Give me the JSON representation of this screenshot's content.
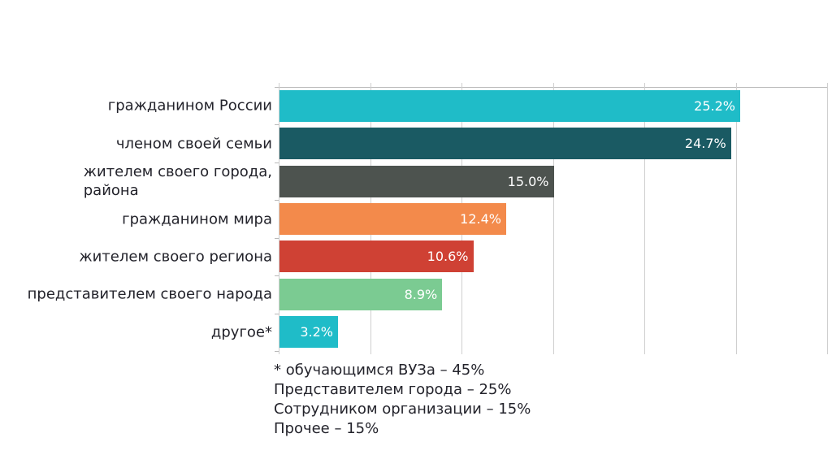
{
  "chart_data": {
    "type": "bar",
    "orientation": "horizontal",
    "title": "",
    "categories": [
      "гражданином России",
      "членом своей семьи",
      "жителем своего города,\nрайона",
      "гражданином мира",
      "жителем своего региона",
      "представителем своего народа",
      "другое*"
    ],
    "values": [
      25.2,
      24.7,
      15.0,
      12.4,
      10.6,
      8.9,
      3.2
    ],
    "value_labels": [
      "25.2%",
      "24.7%",
      "15.0%",
      "12.4%",
      "10.6%",
      "8.9%",
      "3.2%"
    ],
    "bar_colors": [
      "#1fbcc8",
      "#1a5a63",
      "#4d534f",
      "#f38a4b",
      "#cf4134",
      "#7bcb92",
      "#1fbcc8"
    ],
    "xlim": [
      0,
      30
    ],
    "grid_step": 5,
    "grid": true,
    "legend": false,
    "xlabel": "",
    "ylabel": "",
    "background_color": "#ffffff",
    "grid_color": "#cfcfcf",
    "axis_color": "#b9b9b9",
    "value_text_color": "#ffffff",
    "label_text_color": "#23232b"
  },
  "footnote": {
    "line1": "* обучающимся ВУЗа – 45%",
    "line2": "Представителем города – 25%",
    "line3": "Сотрудником организации – 15%",
    "line4": "Прочее – 15%"
  }
}
